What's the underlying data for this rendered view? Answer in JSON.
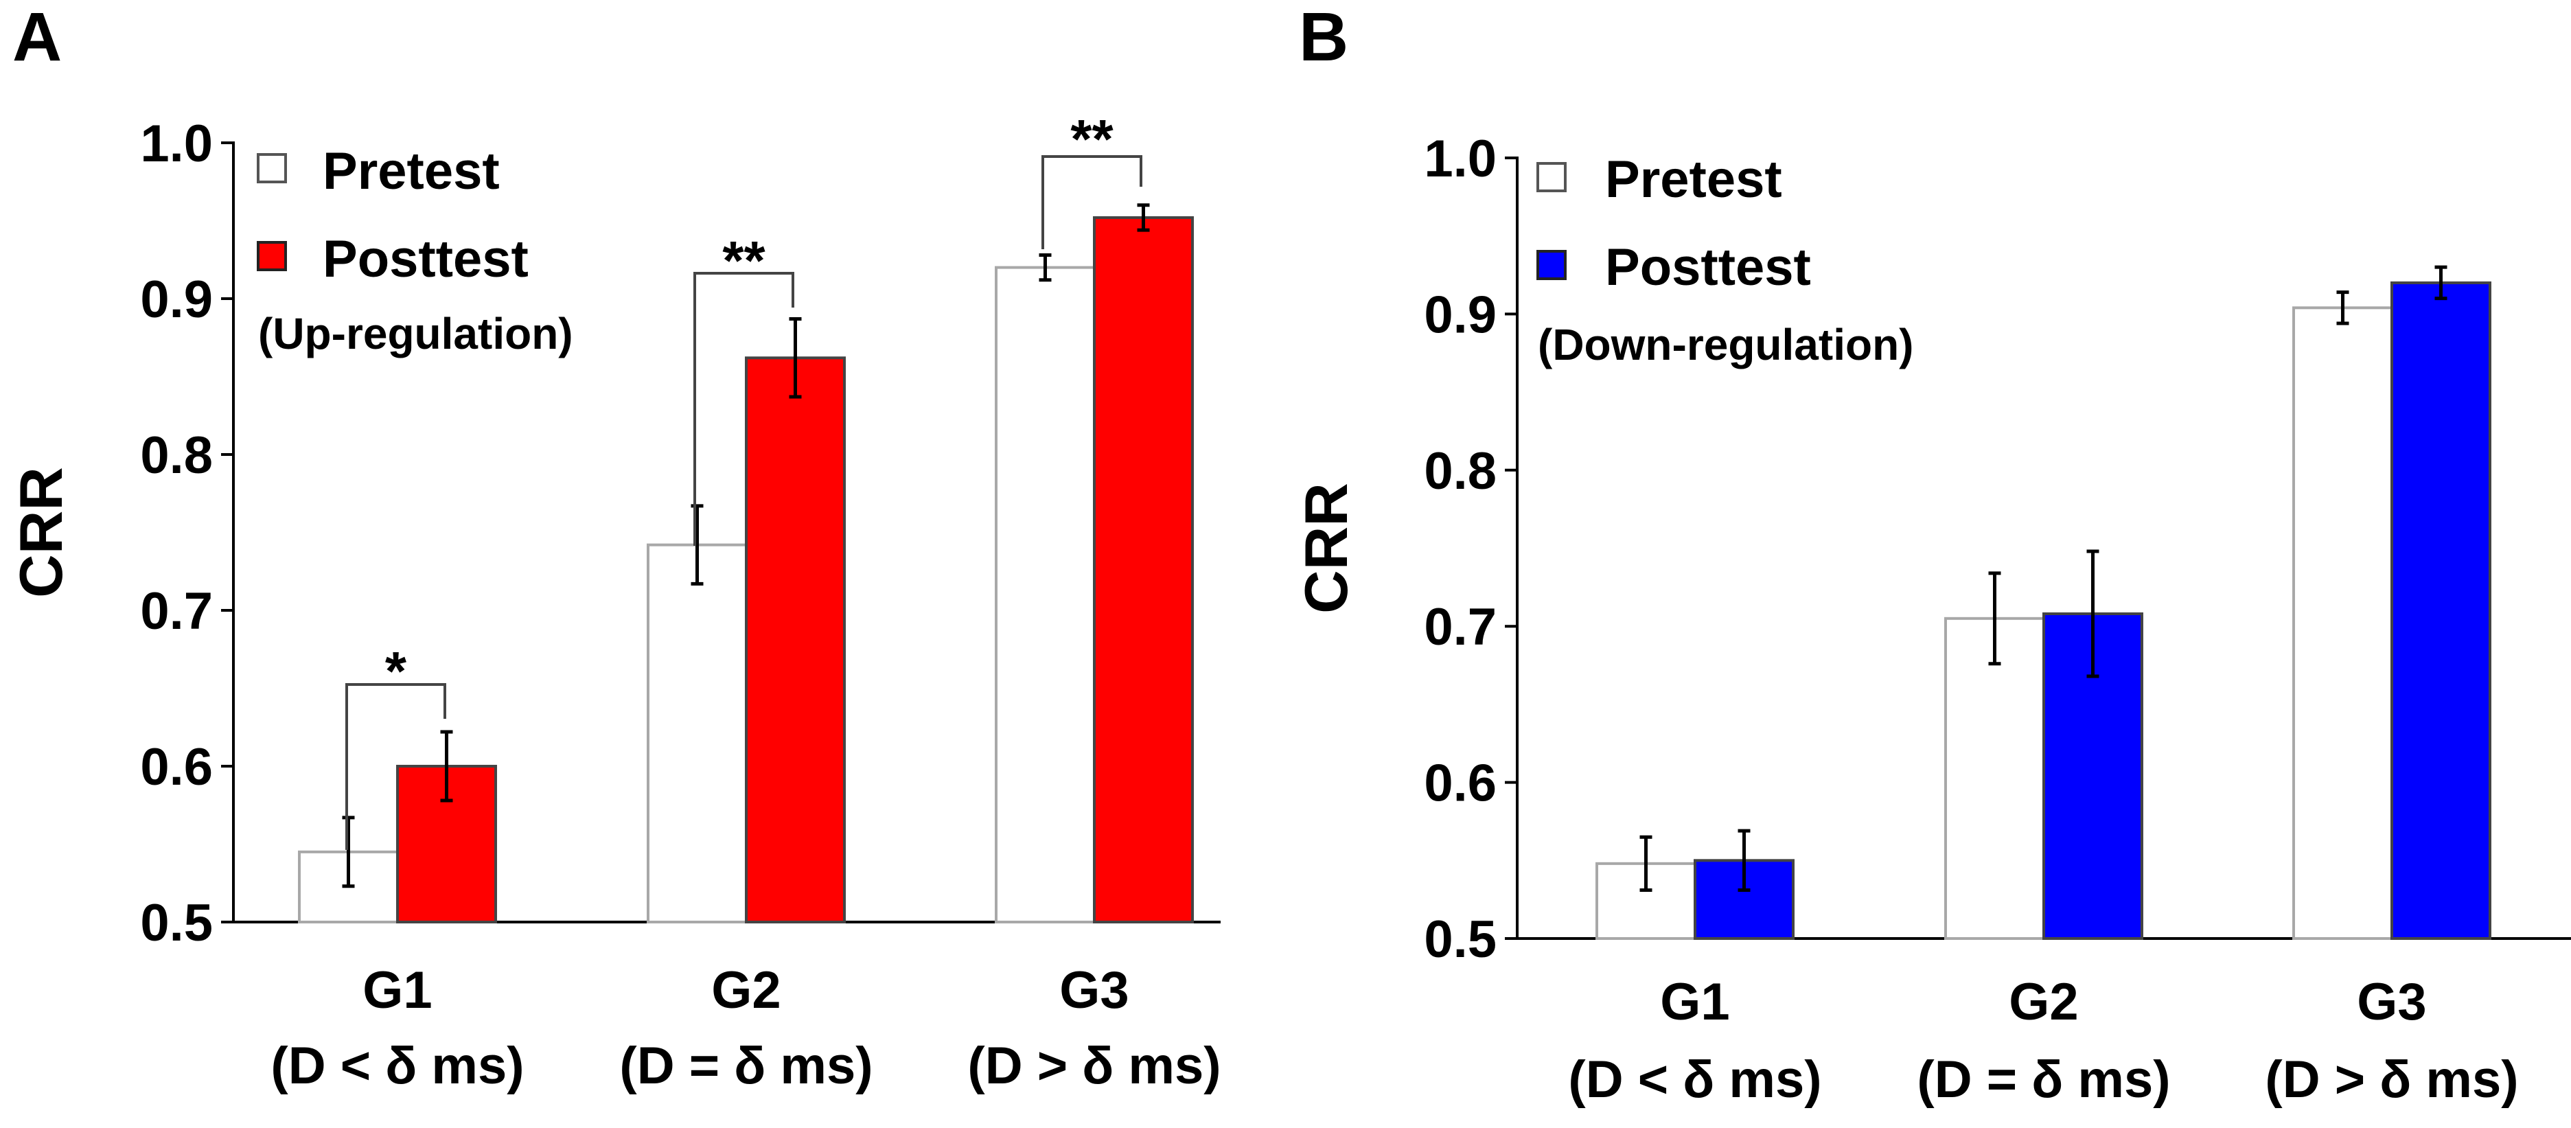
{
  "chart_data": [
    {
      "panel_label": "A",
      "type": "bar",
      "ylabel": "CRR",
      "ylim": [
        0.5,
        1.0
      ],
      "yticks": [
        "0.5",
        "0.6",
        "0.7",
        "0.8",
        "0.9",
        "1.0"
      ],
      "categories": [
        {
          "name": "G1",
          "sub": "(D < δ ms)"
        },
        {
          "name": "G2",
          "sub": "(D = δ ms)"
        },
        {
          "name": "G3",
          "sub": "(D > δ ms)"
        }
      ],
      "series": [
        {
          "name": "Pretest",
          "color": "#ffffff",
          "values": [
            0.545,
            0.742,
            0.92
          ],
          "errors": [
            0.022,
            0.025,
            0.008
          ]
        },
        {
          "name": "Posttest",
          "color": "#ff0000",
          "values": [
            0.6,
            0.862,
            0.952
          ],
          "errors": [
            0.022,
            0.025,
            0.008
          ]
        }
      ],
      "legend_note": "(Up-regulation)",
      "significance": [
        "*",
        "**",
        "**"
      ]
    },
    {
      "panel_label": "B",
      "type": "bar",
      "ylabel": "CRR",
      "ylim": [
        0.5,
        1.0
      ],
      "yticks": [
        "0.5",
        "0.6",
        "0.7",
        "0.8",
        "0.9",
        "1.0"
      ],
      "categories": [
        {
          "name": "G1",
          "sub": "(D < δ ms)"
        },
        {
          "name": "G2",
          "sub": "(D = δ ms)"
        },
        {
          "name": "G3",
          "sub": "(D > δ ms)"
        }
      ],
      "series": [
        {
          "name": "Pretest",
          "color": "#ffffff",
          "values": [
            0.548,
            0.705,
            0.904
          ],
          "errors": [
            0.017,
            0.029,
            0.01
          ]
        },
        {
          "name": "Posttest",
          "color": "#0000ff",
          "values": [
            0.55,
            0.708,
            0.92
          ],
          "errors": [
            0.019,
            0.04,
            0.01
          ]
        }
      ],
      "legend_note": "(Down-regulation)",
      "significance": [
        "",
        "",
        ""
      ]
    }
  ]
}
